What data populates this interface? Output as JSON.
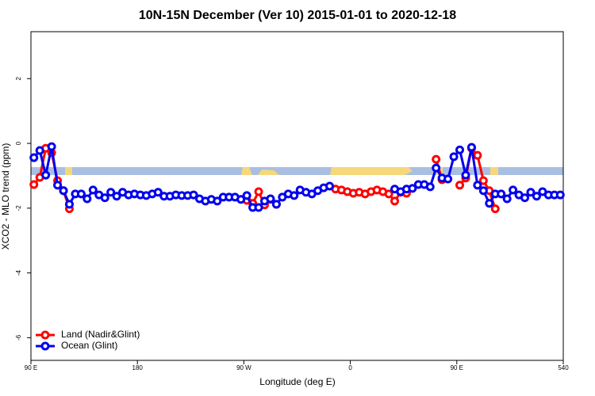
{
  "chart_data": {
    "type": "line",
    "title": "10N-15N December (Ver 10)   2015-01-01 to 2020-12-18",
    "x_label": "Longitude (deg E)",
    "y_label": "XCO2 - MLO trend (ppm)",
    "xlim": [
      90,
      540
    ],
    "xticks": [
      {
        "value": 90,
        "label": "90 E"
      },
      180,
      {
        "value": 270,
        "label": "90 W"
      },
      {
        "value": 360,
        "label": "0"
      },
      {
        "value": 450,
        "label": "90 E"
      },
      540
    ],
    "ylim": [
      -6.7,
      3.45
    ],
    "yticks": [
      -6,
      -4,
      -2,
      0,
      2
    ],
    "legend": "bottom-left",
    "x": [
      92.5,
      97.5,
      102.5,
      107.5,
      112.5,
      117.5,
      122.5,
      127.5,
      132.5,
      137.5,
      142.5,
      147.5,
      152.5,
      157.5,
      162.5,
      167.5,
      172.5,
      177.5,
      182.5,
      187.5,
      192.5,
      197.5,
      202.5,
      207.5,
      212.5,
      217.5,
      222.5,
      227.5,
      232.5,
      237.5,
      242.5,
      247.5,
      252.5,
      257.5,
      262.5,
      267.5,
      272.5,
      277.5,
      282.5,
      287.5,
      292.5,
      297.5,
      302.5,
      307.5,
      312.5,
      317.5,
      322.5,
      327.5,
      332.5,
      337.5,
      342.5,
      347.5,
      352.5,
      357.5,
      362.5,
      367.5,
      372.5,
      377.5,
      382.5,
      387.5,
      392.5,
      397.5,
      402.5,
      407.5,
      412.5,
      417.5,
      422.5,
      427.5,
      432.5,
      437.5,
      442.5,
      447.5,
      452.5,
      457.5,
      462.5,
      467.5,
      472.5,
      477.5,
      482.5,
      487.5,
      492.5,
      497.5,
      502.5,
      507.5,
      512.5,
      517.5,
      522.5,
      527.5,
      532.5,
      537.5
    ],
    "series": [
      {
        "name": "Land (Nadir&Glint)",
        "color": "#ff0000",
        "values": [
          -1.27,
          -1.05,
          -0.15,
          -0.29,
          -1.15,
          -1.46,
          -2.02,
          null,
          null,
          null,
          null,
          null,
          null,
          null,
          null,
          null,
          null,
          null,
          null,
          null,
          null,
          null,
          null,
          null,
          null,
          null,
          null,
          null,
          null,
          null,
          null,
          null,
          null,
          null,
          null,
          null,
          -1.76,
          -1.85,
          -1.49,
          -1.9,
          -1.73,
          -1.88,
          null,
          null,
          null,
          null,
          null,
          null,
          null,
          null,
          null,
          -1.41,
          -1.44,
          -1.49,
          -1.54,
          -1.51,
          -1.56,
          -1.49,
          -1.44,
          -1.49,
          -1.56,
          -1.78,
          -1.51,
          -1.54,
          null,
          null,
          null,
          null,
          -0.49,
          -1.12,
          null,
          null,
          -1.29,
          -1.07,
          -0.15,
          -0.37,
          -1.15,
          -1.46,
          -2.02,
          null,
          null,
          null,
          null,
          null,
          null,
          null,
          null,
          null,
          null,
          null
        ]
      },
      {
        "name": "Ocean (Glint)",
        "color": "#0000ee",
        "values": [
          -0.44,
          -0.22,
          -0.98,
          -0.1,
          -1.29,
          -1.46,
          -1.88,
          -1.56,
          -1.56,
          -1.71,
          -1.44,
          -1.59,
          -1.68,
          -1.51,
          -1.63,
          -1.51,
          -1.59,
          -1.56,
          -1.59,
          -1.61,
          -1.56,
          -1.51,
          -1.63,
          -1.63,
          -1.59,
          -1.61,
          -1.61,
          -1.59,
          -1.71,
          -1.78,
          -1.73,
          -1.78,
          -1.66,
          -1.66,
          -1.66,
          -1.73,
          -1.61,
          -1.98,
          -1.98,
          -1.78,
          -1.71,
          -1.88,
          -1.66,
          -1.56,
          -1.61,
          -1.44,
          -1.51,
          -1.56,
          -1.46,
          -1.37,
          -1.32,
          null,
          null,
          null,
          null,
          null,
          null,
          null,
          null,
          null,
          null,
          -1.41,
          -1.49,
          -1.41,
          -1.39,
          -1.27,
          -1.27,
          -1.34,
          -0.76,
          -1.07,
          -1.1,
          -0.41,
          -0.2,
          -0.98,
          -0.12,
          -1.29,
          -1.46,
          -1.85,
          -1.56,
          -1.56,
          -1.71,
          -1.44,
          -1.59,
          -1.68,
          -1.51,
          -1.63,
          -1.49,
          -1.59,
          -1.59,
          -1.59
        ]
      }
    ]
  }
}
